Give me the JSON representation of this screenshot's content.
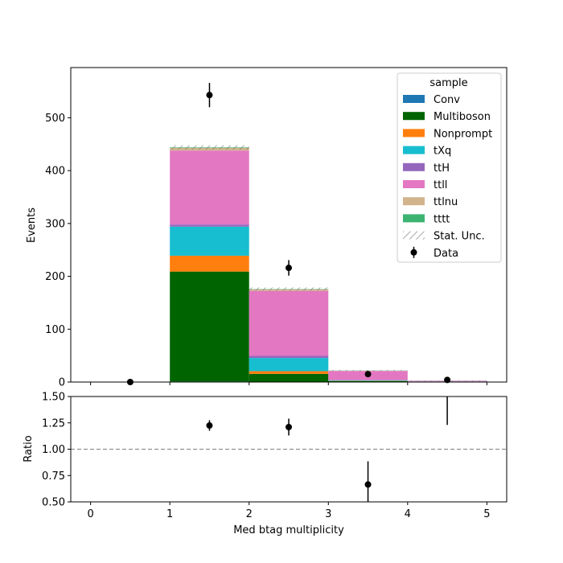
{
  "chart_data": {
    "type": "bar",
    "stacked": true,
    "xlabel": "Med btag multiplicity",
    "ylabel": "Events",
    "ratio_ylabel": "Ratio",
    "xlim": [
      -0.25,
      5.25
    ],
    "ylim": [
      0,
      595
    ],
    "ratio_ylim": [
      0.5,
      1.5
    ],
    "xticks": [
      "0",
      "1",
      "2",
      "3",
      "4",
      "5"
    ],
    "yticks": [
      "0",
      "100",
      "200",
      "300",
      "400",
      "500"
    ],
    "ratio_yticks": [
      "0.50",
      "0.75",
      "1.00",
      "1.25",
      "1.50"
    ],
    "bins": [
      [
        0,
        1
      ],
      [
        1,
        2
      ],
      [
        2,
        3
      ],
      [
        3,
        4
      ],
      [
        4,
        5
      ]
    ],
    "legend_title": "sample",
    "legend_position": "top-right",
    "series": [
      {
        "name": "Conv",
        "color": "#1f77b4",
        "values": [
          0,
          1,
          0.5,
          0,
          0
        ]
      },
      {
        "name": "Multiboson",
        "color": "#006400",
        "values": [
          0,
          208,
          15,
          2,
          0.5
        ]
      },
      {
        "name": "Nonprompt",
        "color": "#ff7f0e",
        "values": [
          0,
          30,
          5,
          0.5,
          0.2
        ]
      },
      {
        "name": "tXq",
        "color": "#17becf",
        "values": [
          0,
          55,
          25,
          1,
          0.3
        ]
      },
      {
        "name": "ttH",
        "color": "#9467bd",
        "values": [
          0,
          4,
          4,
          0.5,
          0.1
        ]
      },
      {
        "name": "ttll",
        "color": "#e377c2",
        "values": [
          0,
          140,
          123,
          17,
          1.2
        ]
      },
      {
        "name": "ttlnu",
        "color": "#d2b48c",
        "values": [
          0,
          5,
          3,
          0.5,
          0.1
        ]
      },
      {
        "name": "tttt",
        "color": "#3cb371",
        "values": [
          0,
          1,
          0.5,
          0.3,
          0.1
        ]
      }
    ],
    "stat_unc_label": "Stat. Unc.",
    "stat_unc": [
      0,
      4,
      3,
      1,
      0.3
    ],
    "data": {
      "name": "Data",
      "x": [
        0.5,
        1.5,
        2.5,
        3.5,
        4.5
      ],
      "y": [
        0,
        543,
        216,
        15,
        4
      ],
      "yerr": [
        0,
        23,
        14.7,
        3.9,
        2
      ]
    },
    "ratio": {
      "x": [
        1.5,
        2.5,
        3.5,
        4.5
      ],
      "y": [
        1.225,
        1.21,
        0.665,
        1.6
      ],
      "yerr": [
        0.05,
        0.08,
        0.22,
        0.37
      ],
      "reference_line": 1.0
    }
  }
}
